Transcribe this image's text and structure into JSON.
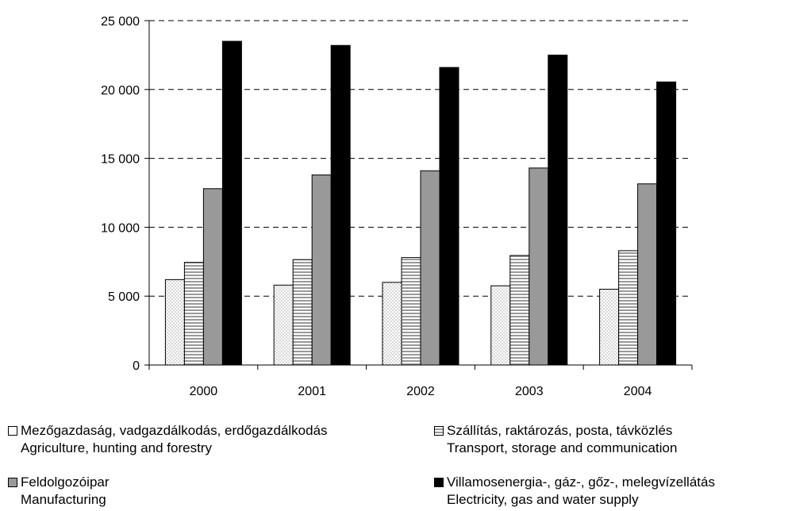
{
  "chart_data": {
    "type": "bar",
    "title": "",
    "xlabel": "",
    "ylabel": "",
    "categories": [
      "2000",
      "2001",
      "2002",
      "2003",
      "2004"
    ],
    "ylim": [
      0,
      25000
    ],
    "yticks": [
      0,
      5000,
      10000,
      15000,
      20000,
      25000
    ],
    "ytick_labels": [
      "0",
      "5 000",
      "10 000",
      "15 000",
      "20 000",
      "25 000"
    ],
    "grid": true,
    "legend_position": "bottom",
    "series": [
      {
        "name": "Mezőgazdaság, vadgazdálkodás, erdőgazdálkodás",
        "name_en": "Agriculture, hunting and forestry",
        "pattern": "dots",
        "values": [
          6200,
          5800,
          6000,
          5750,
          5500
        ]
      },
      {
        "name": "Szállítás, raktározás, posta, távközlés",
        "name_en": "Transport, storage and communication",
        "pattern": "horizontal-stripes",
        "values": [
          7450,
          7650,
          7800,
          7950,
          8300
        ]
      },
      {
        "name": "Feldolgozóipar",
        "name_en": "Manufacturing",
        "pattern": "gray",
        "color": "#999999",
        "values": [
          12800,
          13800,
          14100,
          14300,
          13150
        ]
      },
      {
        "name": "Villamosenergia-, gáz-, gőz-, melegvízellátás",
        "name_en": "Electricity, gas and water supply",
        "pattern": "black",
        "color": "#000000",
        "values": [
          23500,
          23200,
          21600,
          22500,
          20550
        ]
      }
    ]
  }
}
